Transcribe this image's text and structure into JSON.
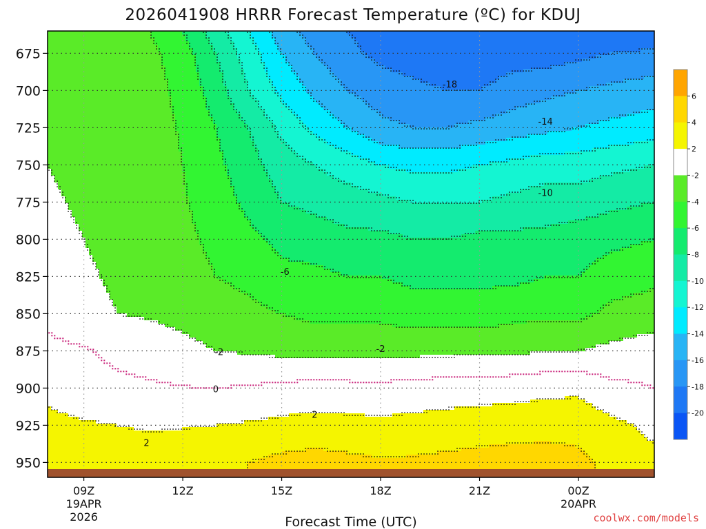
{
  "chart_data": {
    "type": "contour",
    "title": "2026041908 HRRR Forecast Temperature (ºC) for KDUJ",
    "xlabel": "Forecast Time (UTC)",
    "ylabel": "",
    "x_range_hours_utc": [
      7.9,
      26.3
    ],
    "y_range_hpa": [
      960,
      660
    ],
    "y_ticks": [
      "675",
      "700",
      "725",
      "750",
      "775",
      "800",
      "825",
      "850",
      "875",
      "900",
      "925",
      "950"
    ],
    "y_tick_values": [
      675,
      700,
      725,
      750,
      775,
      800,
      825,
      850,
      875,
      900,
      925,
      950
    ],
    "x_ticks": [
      {
        "hour": 9,
        "label": "09Z",
        "date1": "19APR",
        "date2": "2026"
      },
      {
        "hour": 12,
        "label": "12Z",
        "date1": "",
        "date2": ""
      },
      {
        "hour": 15,
        "label": "15Z",
        "date1": "",
        "date2": ""
      },
      {
        "hour": 18,
        "label": "18Z",
        "date1": "",
        "date2": ""
      },
      {
        "hour": 21,
        "label": "21Z",
        "date1": "",
        "date2": ""
      },
      {
        "hour": 24,
        "label": "00Z",
        "date1": "20APR",
        "date2": ""
      }
    ],
    "fill_levels_c": [
      -20,
      -18,
      -16,
      -14,
      -12,
      -10,
      -8,
      -6,
      -4,
      -2,
      2,
      4,
      6
    ],
    "band_colors": [
      "#0a55f5",
      "#1e78f5",
      "#2896f5",
      "#28b4f5",
      "#00ebff",
      "#14f5d2",
      "#14eba5",
      "#14eb6e",
      "#32f532",
      "#5aeb28",
      "#ffffff",
      "#f5f500",
      "#ffd700",
      "#ffa500"
    ],
    "colorbar_labels": [
      "6",
      "4",
      "2",
      "-2",
      "-4",
      "-6",
      "-8",
      "-10",
      "-12",
      "-14",
      "-16",
      "-18",
      "-20"
    ],
    "contour_labels": [
      {
        "text": "-18",
        "hour": 20.1,
        "hpa": 696
      },
      {
        "text": "-14",
        "hour": 23.0,
        "hpa": 721
      },
      {
        "text": "-10",
        "hour": 23.0,
        "hpa": 769
      },
      {
        "text": "-6",
        "hour": 15.1,
        "hpa": 822
      },
      {
        "text": "-2",
        "hour": 13.1,
        "hpa": 876
      },
      {
        "text": "-2",
        "hour": 18.0,
        "hpa": 874
      },
      {
        "text": "0",
        "hour": 13.0,
        "hpa": 901
      },
      {
        "text": "2",
        "hour": 16.0,
        "hpa": 918
      },
      {
        "text": "2",
        "hour": 10.9,
        "hpa": 937
      }
    ],
    "surface_color": "#a0522d",
    "freezing_line_color": "#c81e78",
    "sample_grid": {
      "hours": [
        7.9,
        9.0,
        10.0,
        11.0,
        12.0,
        13.0,
        14.0,
        15.0,
        16.0,
        17.0,
        18.0,
        19.0,
        20.0,
        21.0,
        22.0,
        23.0,
        24.0,
        25.0,
        26.3
      ],
      "hpa": [
        660,
        675,
        700,
        725,
        750,
        775,
        800,
        825,
        850,
        875,
        900,
        925,
        950
      ],
      "temps_c": [
        [
          -2.5,
          -3.0,
          -3.5,
          -4.0,
          -6.0,
          -9.0,
          -12.0,
          -15.0,
          -17.0,
          -18.0,
          -19.0,
          -20.0,
          -20.0,
          -20.0,
          -20.0,
          -20.0,
          -20.0,
          -20.0,
          -20.0
        ],
        [
          -2.5,
          -3.0,
          -3.2,
          -3.5,
          -5.0,
          -8.0,
          -11.0,
          -14.0,
          -16.0,
          -17.5,
          -18.5,
          -19.0,
          -19.5,
          -19.5,
          -19.0,
          -19.0,
          -18.5,
          -18.0,
          -17.5
        ],
        [
          -2.3,
          -2.8,
          -3.0,
          -3.3,
          -4.5,
          -7.0,
          -10.0,
          -12.5,
          -14.5,
          -16.0,
          -17.0,
          -17.5,
          -18.0,
          -18.0,
          -17.0,
          -16.5,
          -16.0,
          -15.5,
          -15.0
        ],
        [
          -2.2,
          -2.6,
          -2.8,
          -3.2,
          -4.2,
          -6.0,
          -8.0,
          -10.5,
          -12.5,
          -14.0,
          -15.5,
          -16.0,
          -16.0,
          -15.5,
          -15.0,
          -14.5,
          -14.0,
          -13.5,
          -13.0
        ],
        [
          -2.0,
          -2.4,
          -2.6,
          -3.0,
          -4.0,
          -5.5,
          -7.2,
          -9.0,
          -10.0,
          -11.0,
          -12.0,
          -12.5,
          -12.5,
          -12.0,
          -11.5,
          -11.0,
          -11.0,
          -10.5,
          -10.0
        ],
        [
          -1.8,
          -2.2,
          -2.5,
          -2.8,
          -3.8,
          -5.0,
          -6.5,
          -8.0,
          -8.5,
          -9.0,
          -9.5,
          -10.0,
          -10.0,
          -10.0,
          -9.5,
          -9.0,
          -9.0,
          -8.5,
          -8.0
        ],
        [
          -1.6,
          -2.0,
          -2.4,
          -2.6,
          -3.5,
          -4.5,
          -5.5,
          -6.5,
          -7.0,
          -7.5,
          -7.5,
          -8.0,
          -8.0,
          -7.5,
          -7.5,
          -7.5,
          -7.0,
          -6.5,
          -6.0
        ],
        [
          -1.4,
          -1.8,
          -2.2,
          -2.5,
          -3.0,
          -4.0,
          -4.5,
          -5.5,
          -5.5,
          -6.0,
          -6.0,
          -6.5,
          -6.5,
          -6.5,
          -6.5,
          -6.0,
          -6.0,
          -5.0,
          -4.5
        ],
        [
          -0.5,
          -1.5,
          -2.0,
          -2.2,
          -2.5,
          -3.0,
          -3.5,
          -4.0,
          -4.5,
          -4.5,
          -4.5,
          -5.0,
          -5.0,
          -5.0,
          -4.5,
          -4.5,
          -4.5,
          -3.5,
          -3.0
        ],
        [
          0.5,
          0.2,
          -0.5,
          -1.0,
          -1.5,
          -2.0,
          -2.2,
          -2.5,
          -2.5,
          -2.5,
          -2.5,
          -2.5,
          -2.5,
          -2.5,
          -2.5,
          -2.0,
          -2.0,
          -1.5,
          -1.0
        ],
        [
          1.5,
          0.8,
          0.5,
          0.3,
          0.1,
          0.0,
          0.2,
          0.5,
          0.7,
          0.6,
          0.5,
          0.8,
          1.0,
          1.2,
          1.3,
          1.5,
          1.6,
          0.5,
          0.0
        ],
        [
          2.5,
          2.2,
          2.0,
          1.8,
          1.9,
          2.0,
          2.2,
          2.5,
          2.7,
          2.6,
          2.5,
          2.6,
          2.8,
          2.9,
          3.0,
          3.2,
          3.3,
          2.5,
          1.5
        ],
        [
          3.5,
          3.2,
          3.0,
          3.0,
          3.0,
          3.5,
          4.0,
          4.5,
          4.8,
          4.5,
          4.2,
          4.3,
          4.5,
          4.8,
          5.0,
          5.0,
          4.5,
          3.5,
          2.5
        ]
      ]
    }
  },
  "credit": "coolwx.com/models"
}
